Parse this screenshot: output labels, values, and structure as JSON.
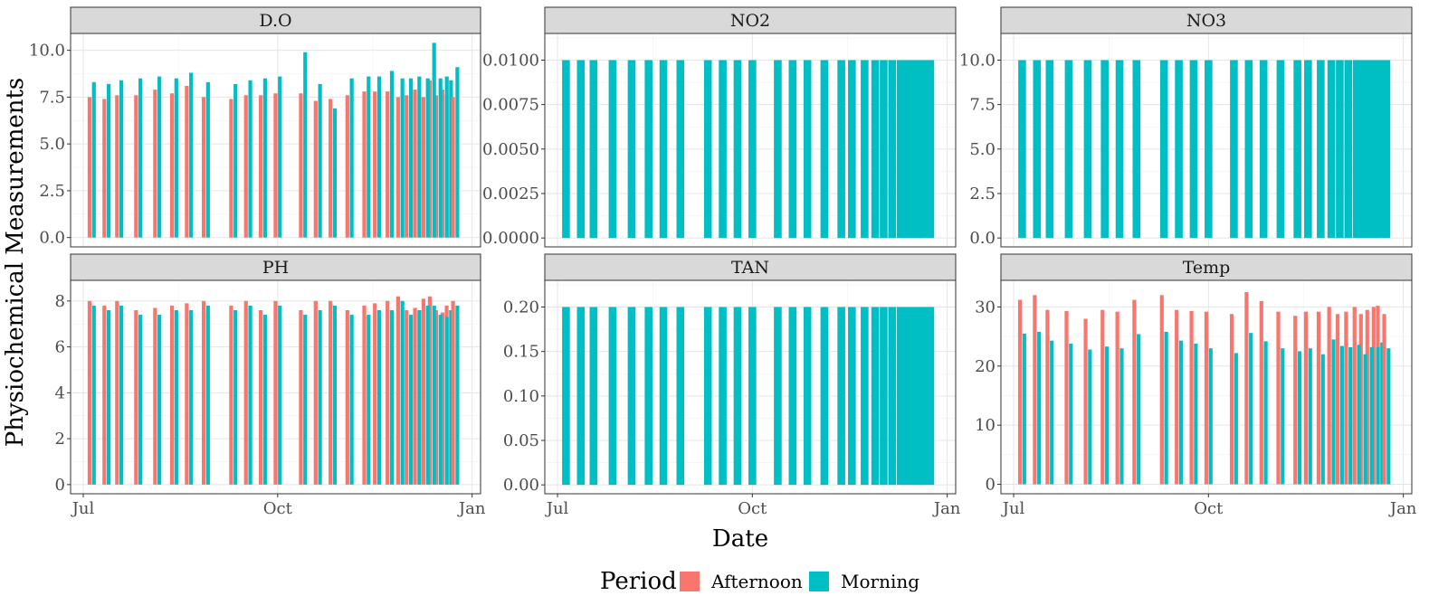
{
  "chart_data": {
    "type": "bar",
    "xlabel": "Date",
    "ylabel": "Physiochemical Measurements",
    "x_ticks": [
      "Jul",
      "Oct",
      "Jan"
    ],
    "legend": {
      "title": "Period",
      "placement": "bottom",
      "entries": [
        {
          "name": "Afternoon",
          "color": "#F8766D"
        },
        {
          "name": "Morning",
          "color": "#00BFC4"
        }
      ]
    },
    "grid": true,
    "series_colors": {
      "Afternoon": "#F8766D",
      "Morning": "#00BFC4"
    },
    "dates": [
      "2023-07-05",
      "2023-07-12",
      "2023-07-18",
      "2023-07-27",
      "2023-08-05",
      "2023-08-13",
      "2023-08-20",
      "2023-08-28",
      "2023-09-10",
      "2023-09-17",
      "2023-09-24",
      "2023-10-01",
      "2023-10-13",
      "2023-10-20",
      "2023-10-27",
      "2023-11-04",
      "2023-11-12",
      "2023-11-17",
      "2023-11-23",
      "2023-11-28",
      "2023-12-02",
      "2023-12-06",
      "2023-12-10",
      "2023-12-13",
      "2023-12-16",
      "2023-12-19",
      "2023-12-21"
    ],
    "panels": [
      {
        "title": "D.O",
        "ylim": [
          -0.5,
          10.9
        ],
        "yticks": [
          "0.0",
          "2.5",
          "5.0",
          "7.5",
          "10.0"
        ],
        "series": [
          {
            "name": "Afternoon",
            "values": [
              7.5,
              7.4,
              7.6,
              7.6,
              7.9,
              7.7,
              8.1,
              7.5,
              7.4,
              7.6,
              7.6,
              7.7,
              7.7,
              7.3,
              7.4,
              7.6,
              7.8,
              7.8,
              7.8,
              7.5,
              7.6,
              7.9,
              7.5,
              8.4,
              7.6,
              7.9,
              7.6
            ]
          },
          {
            "name": "Morning",
            "values": [
              8.3,
              8.2,
              8.4,
              8.5,
              8.6,
              8.5,
              8.8,
              8.3,
              8.2,
              8.4,
              8.5,
              8.6,
              9.9,
              8.2,
              6.9,
              8.5,
              8.6,
              8.6,
              8.9,
              8.5,
              8.5,
              8.6,
              8.5,
              10.4,
              8.5,
              8.6,
              8.4
            ]
          }
        ],
        "extra_morning_last": 9.1,
        "extra_afternoon_last": 7.5
      },
      {
        "title": "NO2",
        "ylim": [
          -0.0005,
          0.0115
        ],
        "yticks": [
          "0.0000",
          "0.0025",
          "0.0050",
          "0.0075",
          "0.0100"
        ],
        "series": [
          {
            "name": "Morning",
            "values": [
              0.01,
              0.01,
              0.01,
              0.01,
              0.01,
              0.01,
              0.01,
              0.01,
              0.01,
              0.01,
              0.01,
              0.01,
              0.01,
              0.01,
              0.01,
              0.01,
              0.01,
              0.01,
              0.01,
              0.01,
              0.01,
              0.01,
              0.01,
              0.01,
              0.01,
              0.01,
              0.01
            ]
          }
        ]
      },
      {
        "title": "NO3",
        "ylim": [
          -0.5,
          11.5
        ],
        "yticks": [
          "0.0",
          "2.5",
          "5.0",
          "7.5",
          "10.0"
        ],
        "series": [
          {
            "name": "Morning",
            "values": [
              10,
              10,
              10,
              10,
              10,
              10,
              10,
              10,
              10,
              10,
              10,
              10,
              10,
              10,
              10,
              10,
              10,
              10,
              10,
              10,
              10,
              10,
              10,
              10,
              10,
              10,
              10
            ]
          }
        ]
      },
      {
        "title": "PH",
        "ylim": [
          -0.4,
          8.9
        ],
        "yticks": [
          "0",
          "2",
          "4",
          "6",
          "8"
        ],
        "series": [
          {
            "name": "Afternoon",
            "values": [
              8.0,
              7.8,
              8.0,
              7.6,
              7.7,
              7.8,
              7.9,
              8.0,
              7.8,
              8.0,
              7.6,
              8.0,
              7.6,
              8.0,
              8.0,
              7.6,
              7.8,
              7.9,
              8.0,
              8.2,
              7.6,
              7.7,
              8.1,
              8.2,
              7.6,
              7.5,
              7.8
            ]
          },
          {
            "name": "Morning",
            "values": [
              7.8,
              7.6,
              7.8,
              7.4,
              7.4,
              7.6,
              7.6,
              7.8,
              7.6,
              7.8,
              7.4,
              7.8,
              7.4,
              7.6,
              7.8,
              7.4,
              7.4,
              7.6,
              7.6,
              8.0,
              7.4,
              7.6,
              7.8,
              7.8,
              7.4,
              7.3,
              7.6
            ]
          }
        ],
        "extra_morning_last": 7.8,
        "extra_afternoon_last": 8.0
      },
      {
        "title": "TAN",
        "ylim": [
          -0.01,
          0.23
        ],
        "yticks": [
          "0.00",
          "0.05",
          "0.10",
          "0.15",
          "0.20"
        ],
        "series": [
          {
            "name": "Morning",
            "values": [
              0.2,
              0.2,
              0.2,
              0.2,
              0.2,
              0.2,
              0.2,
              0.2,
              0.2,
              0.2,
              0.2,
              0.2,
              0.2,
              0.2,
              0.2,
              0.2,
              0.2,
              0.2,
              0.2,
              0.2,
              0.2,
              0.2,
              0.2,
              0.2,
              0.2,
              0.2,
              0.2
            ]
          }
        ]
      },
      {
        "title": "Temp",
        "ylim": [
          -1.6,
          34.5
        ],
        "yticks": [
          "0",
          "10",
          "20",
          "30"
        ],
        "series": [
          {
            "name": "Afternoon",
            "values": [
              31.2,
              32.0,
              29.5,
              29.3,
              28.0,
              29.5,
              29.2,
              31.2,
              32.0,
              29.5,
              29.3,
              29.2,
              28.8,
              32.5,
              31.0,
              29.2,
              28.5,
              29.2,
              29.2,
              30.0,
              28.8,
              29.2,
              30.0,
              28.8,
              29.5,
              30.0,
              30.2
            ]
          },
          {
            "name": "Morning",
            "values": [
              25.5,
              25.8,
              24.3,
              23.8,
              22.8,
              23.3,
              23.0,
              25.4,
              25.8,
              24.3,
              23.8,
              23.0,
              22.2,
              25.6,
              24.2,
              23.0,
              22.5,
              23.0,
              22.0,
              24.5,
              23.4,
              23.2,
              23.6,
              22.0,
              23.2,
              23.2,
              24.0
            ]
          }
        ],
        "extra_morning_last": 23.0,
        "extra_afternoon_last": 28.8
      }
    ]
  }
}
